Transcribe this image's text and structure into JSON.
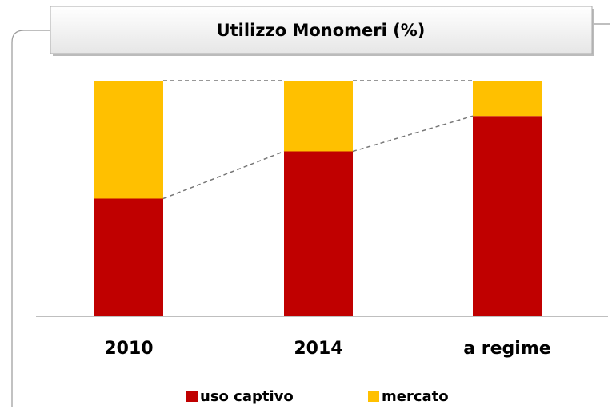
{
  "chart_data": {
    "type": "bar",
    "stacked": true,
    "title": "Utilizzo Monomeri (%)",
    "categories": [
      "2010",
      "2014",
      "a regime"
    ],
    "series": [
      {
        "name": "uso captivo",
        "color": "#c00000",
        "values": [
          50,
          70,
          85
        ]
      },
      {
        "name": "mercato",
        "color": "#ffc000",
        "values": [
          50,
          30,
          15
        ]
      }
    ],
    "legend": "bottom"
  }
}
